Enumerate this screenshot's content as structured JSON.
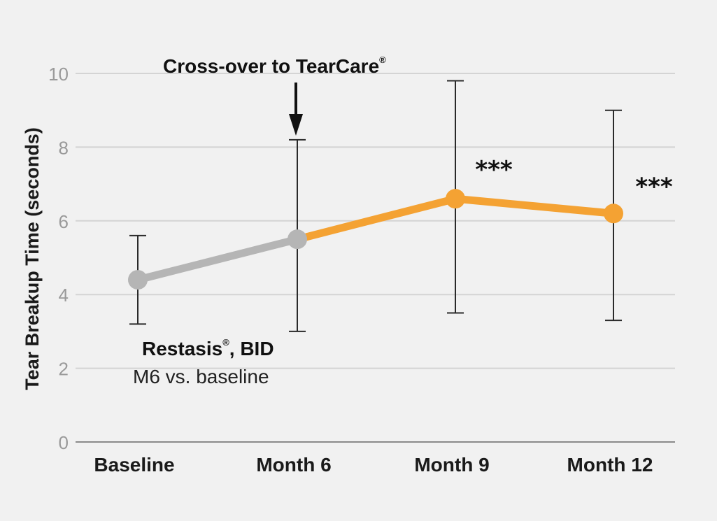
{
  "chart_data": {
    "type": "line",
    "categories": [
      "Baseline",
      "Month 6",
      "Month 9",
      "Month 12"
    ],
    "ylabel": "Tear Breakup Time (seconds)",
    "ylim": [
      0,
      10
    ],
    "yticks": [
      "0",
      "2",
      "4",
      "6",
      "8",
      "10"
    ],
    "grid": true,
    "series": [
      {
        "values": [
          4.4,
          5.5,
          6.6,
          6.2
        ],
        "error_low": [
          3.2,
          3.0,
          3.5,
          3.3
        ],
        "error_high": [
          5.6,
          8.2,
          9.8,
          9.0
        ]
      }
    ],
    "segment_colors": {
      "restasis": "#b5b5b5",
      "tearcare": "#f4a233"
    },
    "annotations": {
      "crossover_label": "Cross-over to TearCare",
      "crossover_reg": "®",
      "restasis_label": "Restasis",
      "restasis_reg": "®",
      "restasis_suffix": ", BID",
      "restasis_sub": "M6 vs. baseline",
      "significance": [
        "",
        "",
        "***",
        "***"
      ]
    }
  }
}
